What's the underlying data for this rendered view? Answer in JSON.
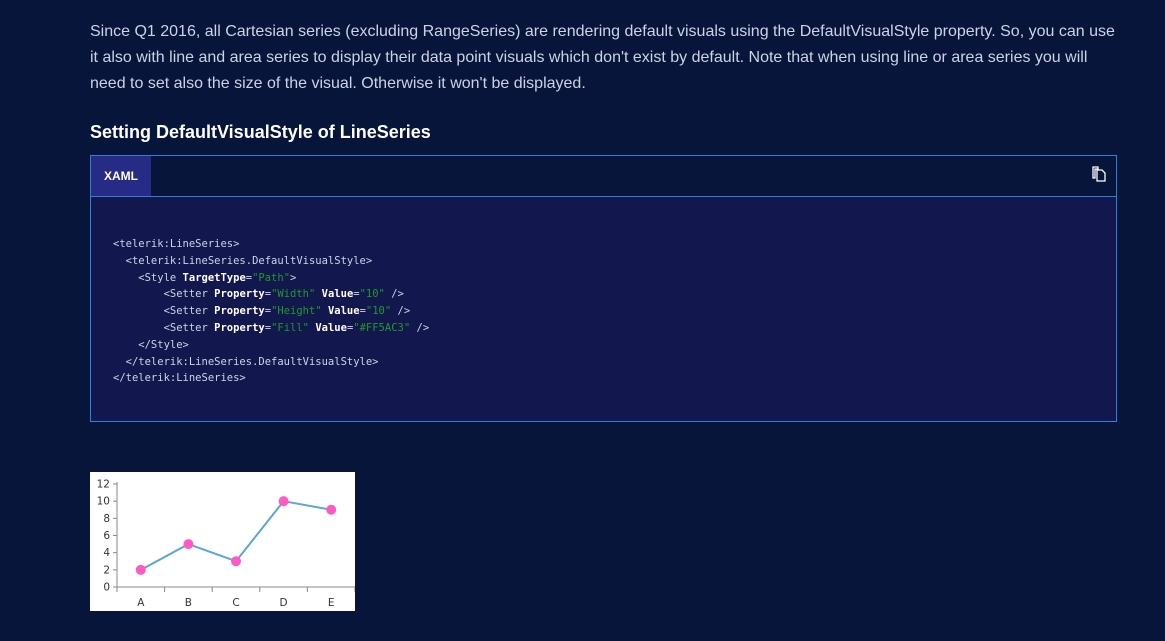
{
  "intro": "Since Q1 2016, all Cartesian series (excluding RangeSeries) are rendering default visuals using the DefaultVisualStyle property. So, you can use it also with line and area series to display their data point visuals which don't exist by default. Note that when using line or area series you will need to set also the size of the visual. Otherwise it won't be displayed.",
  "heading": "Setting DefaultVisualStyle of LineSeries",
  "code": {
    "tab": "XAML",
    "copy_icon": "copy-icon",
    "lines": [
      "<telerik:LineSeries>",
      "  <telerik:LineSeries.DefaultVisualStyle>",
      "    <Style TargetType=\"Path\">",
      "        <Setter Property=\"Width\" Value=\"10\" />",
      "        <Setter Property=\"Height\" Value=\"10\" />",
      "        <Setter Property=\"Fill\" Value=\"#FF5AC3\" />",
      "    </Style>",
      "  </telerik:LineSeries.DefaultVisualStyle>",
      "</telerik:LineSeries>"
    ]
  },
  "chart_data": {
    "type": "line",
    "categories": [
      "A",
      "B",
      "C",
      "D",
      "E"
    ],
    "values": [
      2,
      5,
      3,
      10,
      9
    ],
    "ylim": [
      0,
      12
    ],
    "yticks": [
      "0",
      "2",
      "4",
      "6",
      "8",
      "10",
      "12"
    ],
    "line_color": "#5aa6d6",
    "marker_color": "#FF5AC3",
    "grid": false
  }
}
